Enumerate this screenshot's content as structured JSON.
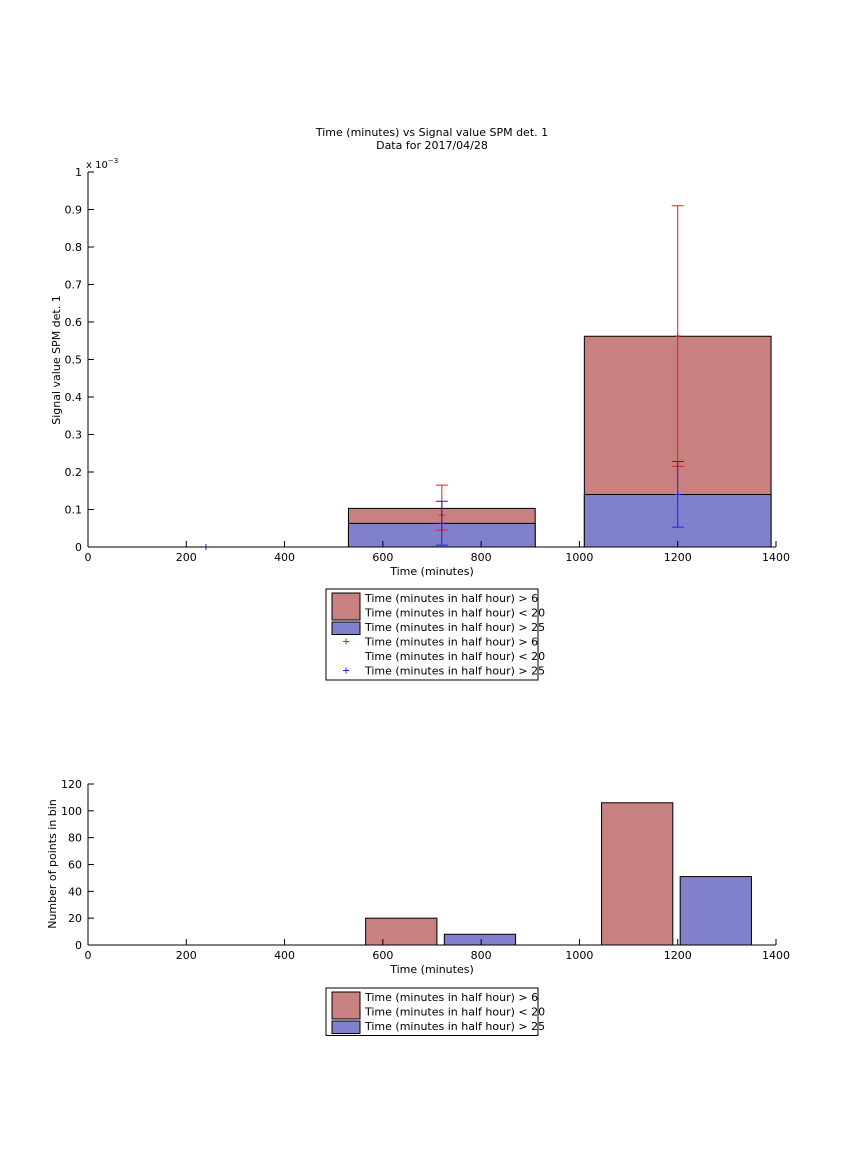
{
  "chart_data": [
    {
      "type": "bar",
      "title": "Time (minutes) vs Signal value SPM det. 1",
      "subtitle": "Data for 2017/04/28",
      "xlabel": "Time (minutes)",
      "ylabel": "Signal value SPM det. 1",
      "xlim": [
        0,
        1400
      ],
      "ylim": [
        0,
        1
      ],
      "y_multiplier_label": "x 10",
      "y_multiplier_exponent": "−3",
      "x_ticks": [
        0,
        200,
        400,
        600,
        800,
        1000,
        1200,
        1400
      ],
      "x_tick_labels": [
        "0",
        "200",
        "400",
        "600",
        "800",
        "1000",
        "1200",
        "1400"
      ],
      "y_ticks": [
        0,
        0.1,
        0.2,
        0.3,
        0.4,
        0.5,
        0.6,
        0.7,
        0.8,
        0.9,
        1
      ],
      "y_tick_labels": [
        "0",
        "0.1",
        "0.2",
        "0.3",
        "0.4",
        "0.5",
        "0.6",
        "0.7",
        "0.8",
        "0.9",
        "1"
      ],
      "grid": false,
      "legend_position": "below",
      "bars": [
        {
          "x_start": 530,
          "x_end": 910,
          "value": 0.103,
          "color": "#c98080",
          "series": 0
        },
        {
          "x_start": 1010,
          "x_end": 1390,
          "value": 0.562,
          "color": "#c98080",
          "series": 0
        },
        {
          "x_start": 530,
          "x_end": 910,
          "value": 0.063,
          "color": "#8080cc",
          "series": 1
        },
        {
          "x_start": 1010,
          "x_end": 1390,
          "value": 0.14,
          "color": "#8080cc",
          "series": 1
        }
      ],
      "errorbars": [
        {
          "x": 720,
          "y": 0.085,
          "low": 0.045,
          "high": 0.165,
          "color": "#e02020",
          "series": 0
        },
        {
          "x": 1200,
          "y": 0.563,
          "low": 0.215,
          "high": 0.91,
          "color": "#e02020",
          "series": 0
        },
        {
          "x": 240,
          "y": 0.0,
          "low": 0.0,
          "high": 0.0,
          "color": "#2020e0",
          "series": 1
        },
        {
          "x": 720,
          "y": 0.063,
          "low": 0.005,
          "high": 0.122,
          "color": "#2020e0",
          "series": 1
        },
        {
          "x": 1200,
          "y": 0.14,
          "low": 0.053,
          "high": 0.228,
          "color": "#2020e0",
          "series": 1
        }
      ],
      "legend": [
        {
          "kind": "patch",
          "color": "#c98080",
          "lines": [
            "Time (minutes in half hour) > 6",
            "Time (minutes in half hour) < 20"
          ]
        },
        {
          "kind": "patch",
          "color": "#8080cc",
          "lines": [
            "Time (minutes in half hour) > 25"
          ]
        },
        {
          "kind": "marker",
          "color": "#e02020",
          "lines": [
            "Time (minutes in half hour) > 6",
            "Time (minutes in half hour) < 20"
          ]
        },
        {
          "kind": "marker",
          "color": "#2020e0",
          "lines": [
            "Time (minutes in half hour) > 25"
          ]
        }
      ]
    },
    {
      "type": "bar",
      "xlabel": "Time (minutes)",
      "ylabel": "Number of points in bin",
      "xlim": [
        0,
        1400
      ],
      "ylim": [
        0,
        120
      ],
      "x_ticks": [
        0,
        200,
        400,
        600,
        800,
        1000,
        1200,
        1400
      ],
      "x_tick_labels": [
        "0",
        "200",
        "400",
        "600",
        "800",
        "1000",
        "1200",
        "1400"
      ],
      "y_ticks": [
        0,
        20,
        40,
        60,
        80,
        100,
        120
      ],
      "y_tick_labels": [
        "0",
        "20",
        "40",
        "60",
        "80",
        "100",
        "120"
      ],
      "grid": false,
      "legend_position": "below",
      "bars": [
        {
          "x_start": 565,
          "x_end": 710,
          "value": 20,
          "color": "#c98080",
          "series": 0
        },
        {
          "x_start": 725,
          "x_end": 870,
          "value": 8,
          "color": "#8080cc",
          "series": 1
        },
        {
          "x_start": 1045,
          "x_end": 1190,
          "value": 106,
          "color": "#c98080",
          "series": 0
        },
        {
          "x_start": 1205,
          "x_end": 1350,
          "value": 51,
          "color": "#8080cc",
          "series": 1
        }
      ],
      "legend": [
        {
          "kind": "patch",
          "color": "#c98080",
          "lines": [
            "Time (minutes in half hour) > 6",
            "Time (minutes in half hour) < 20"
          ]
        },
        {
          "kind": "patch",
          "color": "#8080cc",
          "lines": [
            "Time (minutes in half hour) > 25"
          ]
        }
      ]
    }
  ]
}
